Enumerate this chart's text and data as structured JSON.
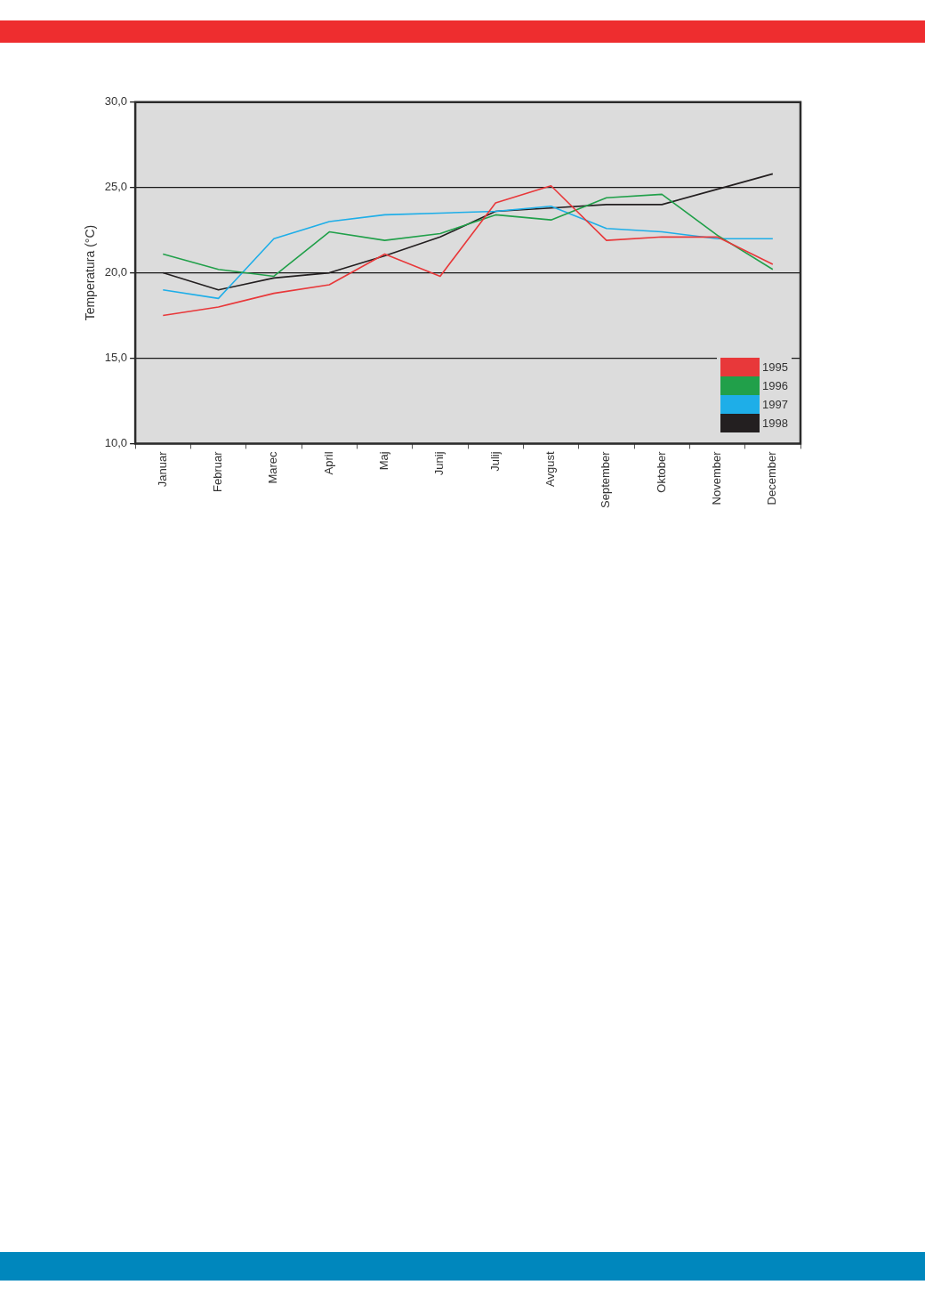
{
  "chart_data": {
    "type": "line",
    "ylabel": "Temperatura (°C)",
    "categories": [
      "Januar",
      "Februar",
      "Marec",
      "April",
      "Maj",
      "Junij",
      "Julij",
      "Avgust",
      "September",
      "Oktober",
      "November",
      "December"
    ],
    "series": [
      {
        "name": "1995",
        "color": "#e8383a",
        "values": [
          17.5,
          18.0,
          18.8,
          19.3,
          21.1,
          19.8,
          24.1,
          25.1,
          21.9,
          22.1,
          22.1,
          20.5
        ]
      },
      {
        "name": "1996",
        "color": "#21a04a",
        "values": [
          21.1,
          20.2,
          19.8,
          22.4,
          21.9,
          22.3,
          23.4,
          23.1,
          24.4,
          24.6,
          22.2,
          20.2
        ]
      },
      {
        "name": "1997",
        "color": "#1eaee8",
        "values": [
          19.0,
          18.5,
          22.0,
          23.0,
          23.4,
          23.5,
          23.6,
          23.9,
          22.6,
          22.4,
          22.0,
          22.0
        ]
      },
      {
        "name": "1998",
        "color": "#231f20",
        "values": [
          20.0,
          19.0,
          19.7,
          20.0,
          21.0,
          22.1,
          23.6,
          23.8,
          24.0,
          24.0,
          24.9,
          25.8
        ]
      }
    ],
    "ylim": [
      10,
      30
    ],
    "yticks": [
      {
        "value": 10,
        "label": "10,0"
      },
      {
        "value": 15,
        "label": "15,0"
      },
      {
        "value": 20,
        "label": "20,0"
      },
      {
        "value": 25,
        "label": "25,0"
      },
      {
        "value": 30,
        "label": "30,0"
      }
    ],
    "grid": "y",
    "legend": "bottom right",
    "marker": "none",
    "line_style": "solid"
  }
}
